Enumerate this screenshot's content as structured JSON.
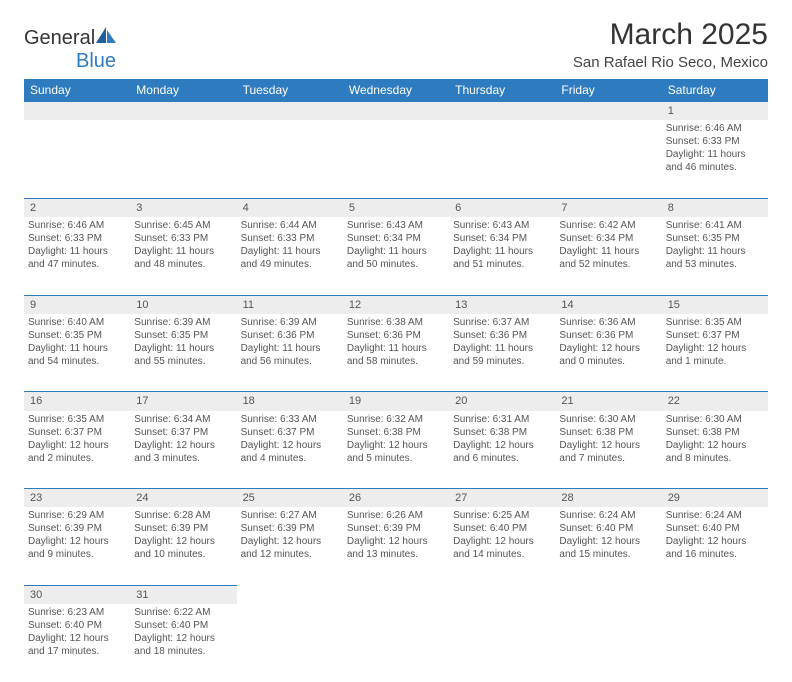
{
  "colors": {
    "header_bg": "#2f7bbf",
    "header_text": "#ffffff",
    "daynum_bg": "#ededed",
    "cell_border": "#2f7bbf",
    "body_text": "#555555",
    "title_text": "#333333"
  },
  "logo": {
    "text1": "General",
    "text2": "Blue"
  },
  "title": "March 2025",
  "location": "San Rafael Rio Seco, Mexico",
  "weekdays": [
    "Sunday",
    "Monday",
    "Tuesday",
    "Wednesday",
    "Thursday",
    "Friday",
    "Saturday"
  ],
  "weeks": [
    [
      null,
      null,
      null,
      null,
      null,
      null,
      {
        "n": "1",
        "sr": "Sunrise: 6:46 AM",
        "ss": "Sunset: 6:33 PM",
        "dl": "Daylight: 11 hours and 46 minutes."
      }
    ],
    [
      {
        "n": "2",
        "sr": "Sunrise: 6:46 AM",
        "ss": "Sunset: 6:33 PM",
        "dl": "Daylight: 11 hours and 47 minutes."
      },
      {
        "n": "3",
        "sr": "Sunrise: 6:45 AM",
        "ss": "Sunset: 6:33 PM",
        "dl": "Daylight: 11 hours and 48 minutes."
      },
      {
        "n": "4",
        "sr": "Sunrise: 6:44 AM",
        "ss": "Sunset: 6:33 PM",
        "dl": "Daylight: 11 hours and 49 minutes."
      },
      {
        "n": "5",
        "sr": "Sunrise: 6:43 AM",
        "ss": "Sunset: 6:34 PM",
        "dl": "Daylight: 11 hours and 50 minutes."
      },
      {
        "n": "6",
        "sr": "Sunrise: 6:43 AM",
        "ss": "Sunset: 6:34 PM",
        "dl": "Daylight: 11 hours and 51 minutes."
      },
      {
        "n": "7",
        "sr": "Sunrise: 6:42 AM",
        "ss": "Sunset: 6:34 PM",
        "dl": "Daylight: 11 hours and 52 minutes."
      },
      {
        "n": "8",
        "sr": "Sunrise: 6:41 AM",
        "ss": "Sunset: 6:35 PM",
        "dl": "Daylight: 11 hours and 53 minutes."
      }
    ],
    [
      {
        "n": "9",
        "sr": "Sunrise: 6:40 AM",
        "ss": "Sunset: 6:35 PM",
        "dl": "Daylight: 11 hours and 54 minutes."
      },
      {
        "n": "10",
        "sr": "Sunrise: 6:39 AM",
        "ss": "Sunset: 6:35 PM",
        "dl": "Daylight: 11 hours and 55 minutes."
      },
      {
        "n": "11",
        "sr": "Sunrise: 6:39 AM",
        "ss": "Sunset: 6:36 PM",
        "dl": "Daylight: 11 hours and 56 minutes."
      },
      {
        "n": "12",
        "sr": "Sunrise: 6:38 AM",
        "ss": "Sunset: 6:36 PM",
        "dl": "Daylight: 11 hours and 58 minutes."
      },
      {
        "n": "13",
        "sr": "Sunrise: 6:37 AM",
        "ss": "Sunset: 6:36 PM",
        "dl": "Daylight: 11 hours and 59 minutes."
      },
      {
        "n": "14",
        "sr": "Sunrise: 6:36 AM",
        "ss": "Sunset: 6:36 PM",
        "dl": "Daylight: 12 hours and 0 minutes."
      },
      {
        "n": "15",
        "sr": "Sunrise: 6:35 AM",
        "ss": "Sunset: 6:37 PM",
        "dl": "Daylight: 12 hours and 1 minute."
      }
    ],
    [
      {
        "n": "16",
        "sr": "Sunrise: 6:35 AM",
        "ss": "Sunset: 6:37 PM",
        "dl": "Daylight: 12 hours and 2 minutes."
      },
      {
        "n": "17",
        "sr": "Sunrise: 6:34 AM",
        "ss": "Sunset: 6:37 PM",
        "dl": "Daylight: 12 hours and 3 minutes."
      },
      {
        "n": "18",
        "sr": "Sunrise: 6:33 AM",
        "ss": "Sunset: 6:37 PM",
        "dl": "Daylight: 12 hours and 4 minutes."
      },
      {
        "n": "19",
        "sr": "Sunrise: 6:32 AM",
        "ss": "Sunset: 6:38 PM",
        "dl": "Daylight: 12 hours and 5 minutes."
      },
      {
        "n": "20",
        "sr": "Sunrise: 6:31 AM",
        "ss": "Sunset: 6:38 PM",
        "dl": "Daylight: 12 hours and 6 minutes."
      },
      {
        "n": "21",
        "sr": "Sunrise: 6:30 AM",
        "ss": "Sunset: 6:38 PM",
        "dl": "Daylight: 12 hours and 7 minutes."
      },
      {
        "n": "22",
        "sr": "Sunrise: 6:30 AM",
        "ss": "Sunset: 6:38 PM",
        "dl": "Daylight: 12 hours and 8 minutes."
      }
    ],
    [
      {
        "n": "23",
        "sr": "Sunrise: 6:29 AM",
        "ss": "Sunset: 6:39 PM",
        "dl": "Daylight: 12 hours and 9 minutes."
      },
      {
        "n": "24",
        "sr": "Sunrise: 6:28 AM",
        "ss": "Sunset: 6:39 PM",
        "dl": "Daylight: 12 hours and 10 minutes."
      },
      {
        "n": "25",
        "sr": "Sunrise: 6:27 AM",
        "ss": "Sunset: 6:39 PM",
        "dl": "Daylight: 12 hours and 12 minutes."
      },
      {
        "n": "26",
        "sr": "Sunrise: 6:26 AM",
        "ss": "Sunset: 6:39 PM",
        "dl": "Daylight: 12 hours and 13 minutes."
      },
      {
        "n": "27",
        "sr": "Sunrise: 6:25 AM",
        "ss": "Sunset: 6:40 PM",
        "dl": "Daylight: 12 hours and 14 minutes."
      },
      {
        "n": "28",
        "sr": "Sunrise: 6:24 AM",
        "ss": "Sunset: 6:40 PM",
        "dl": "Daylight: 12 hours and 15 minutes."
      },
      {
        "n": "29",
        "sr": "Sunrise: 6:24 AM",
        "ss": "Sunset: 6:40 PM",
        "dl": "Daylight: 12 hours and 16 minutes."
      }
    ],
    [
      {
        "n": "30",
        "sr": "Sunrise: 6:23 AM",
        "ss": "Sunset: 6:40 PM",
        "dl": "Daylight: 12 hours and 17 minutes."
      },
      {
        "n": "31",
        "sr": "Sunrise: 6:22 AM",
        "ss": "Sunset: 6:40 PM",
        "dl": "Daylight: 12 hours and 18 minutes."
      },
      null,
      null,
      null,
      null,
      null
    ]
  ]
}
